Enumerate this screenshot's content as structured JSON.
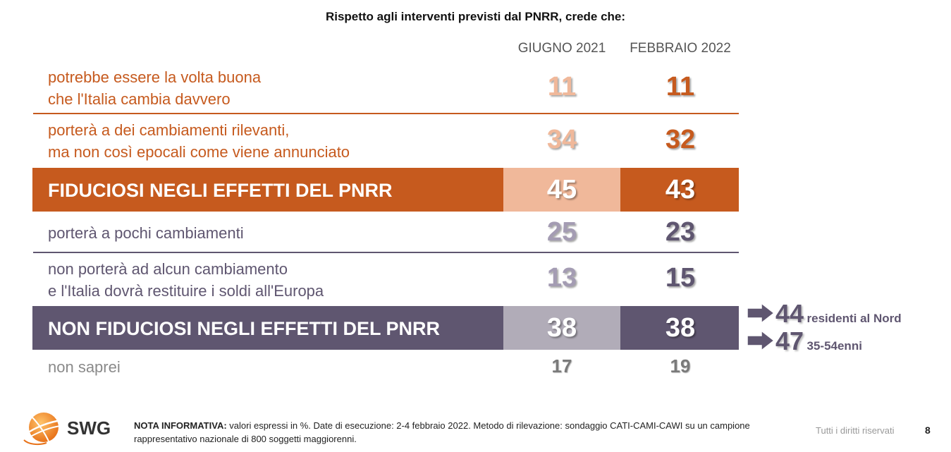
{
  "title": "Rispetto agli interventi previsti dal PNRR, crede che:",
  "chart_data": {
    "type": "table",
    "columns": [
      "GIUGNO 2021",
      "FEBBRAIO 2022"
    ],
    "rows": [
      {
        "label": [
          "potrebbe essere la volta buona",
          "che l'Italia cambia davvero"
        ],
        "values": [
          "11",
          "11"
        ]
      },
      {
        "label": [
          "porterà a dei cambiamenti rilevanti,",
          "ma non così epocali come viene annunciato"
        ],
        "values": [
          "34",
          "32"
        ]
      },
      {
        "label": [
          "FIDUCIOSI NEGLI EFFETTI DEL PNRR"
        ],
        "values": [
          "45",
          "43"
        ]
      },
      {
        "label": [
          "porterà a pochi cambiamenti"
        ],
        "values": [
          "25",
          "23"
        ]
      },
      {
        "label": [
          "non porterà ad alcun cambiamento",
          "e l'Italia dovrà restituire i soldi all'Europa"
        ],
        "values": [
          "13",
          "15"
        ]
      },
      {
        "label": [
          "NON FIDUCIOSI NEGLI EFFETTI DEL PNRR"
        ],
        "values": [
          "38",
          "38"
        ]
      },
      {
        "label": [
          "non saprei"
        ],
        "values": [
          "17",
          "19"
        ]
      }
    ],
    "callouts": [
      {
        "value": "44",
        "label": "residenti al Nord"
      },
      {
        "value": "47",
        "label": "35-54enni"
      }
    ]
  },
  "colors": {
    "orange": "#c65a1e",
    "orange_light": "#f0b89a",
    "purple": "#5f5670",
    "purple_light": "#b1acb8",
    "purple_mid": "#a49cb3"
  },
  "footer": {
    "note_label": "NOTA INFORMATIVA:",
    "note_text": " valori espressi in %. Date di esecuzione: 2-4 febbraio 2022. Metodo di rilevazione: sondaggio CATI-CAMI-CAWI su un campione rappresentativo nazionale di 800 soggetti maggiorenni.",
    "rights": "Tutti i diritti riservati",
    "page": "8",
    "logo": "SWG"
  }
}
